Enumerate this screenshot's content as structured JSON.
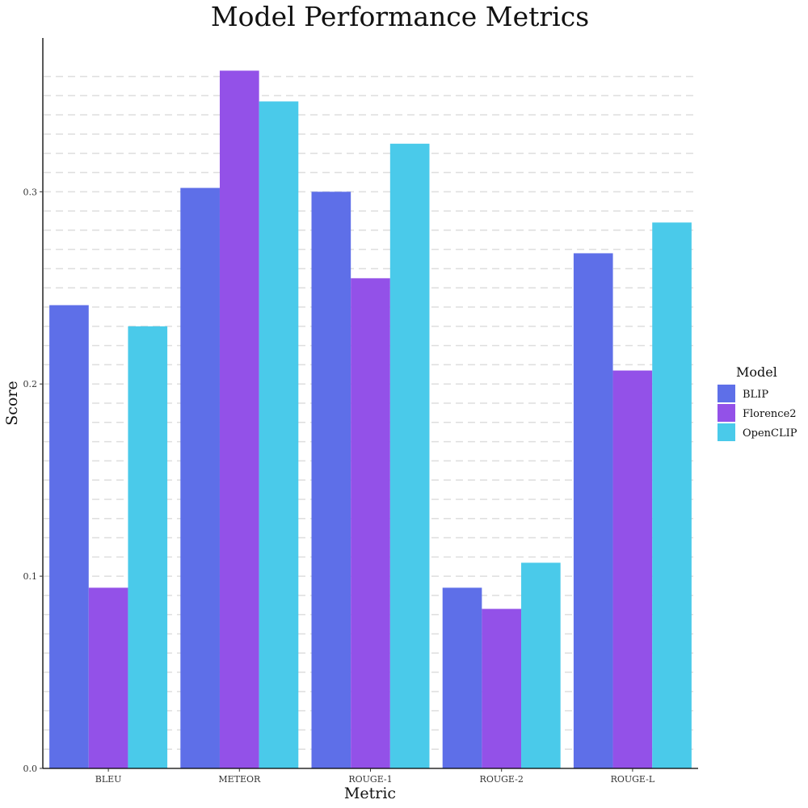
{
  "chart_data": {
    "type": "bar",
    "title": "Model Performance Metrics",
    "xlabel": "Metric",
    "ylabel": "Score",
    "categories": [
      "BLEU",
      "METEOR",
      "ROUGE-1",
      "ROUGE-2",
      "ROUGE-L"
    ],
    "series": [
      {
        "name": "BLIP",
        "color": "#5e6fe8",
        "values": [
          0.241,
          0.302,
          0.3,
          0.094,
          0.268
        ]
      },
      {
        "name": "Florence2",
        "color": "#9351e8",
        "values": [
          0.094,
          0.363,
          0.255,
          0.083,
          0.207
        ]
      },
      {
        "name": "OpenCLIP",
        "color": "#4acaea",
        "values": [
          0.23,
          0.347,
          0.325,
          0.107,
          0.284
        ]
      }
    ],
    "ylim": [
      0,
      0.38
    ],
    "yticks": [
      0.0,
      0.1,
      0.2,
      0.3
    ],
    "ytick_labels": [
      "0.0",
      "0.1",
      "0.2",
      "0.3"
    ],
    "minor_grid_step": 0.01,
    "grid": "horizontal dashed",
    "legend": {
      "title": "Model",
      "placement": "right"
    }
  }
}
